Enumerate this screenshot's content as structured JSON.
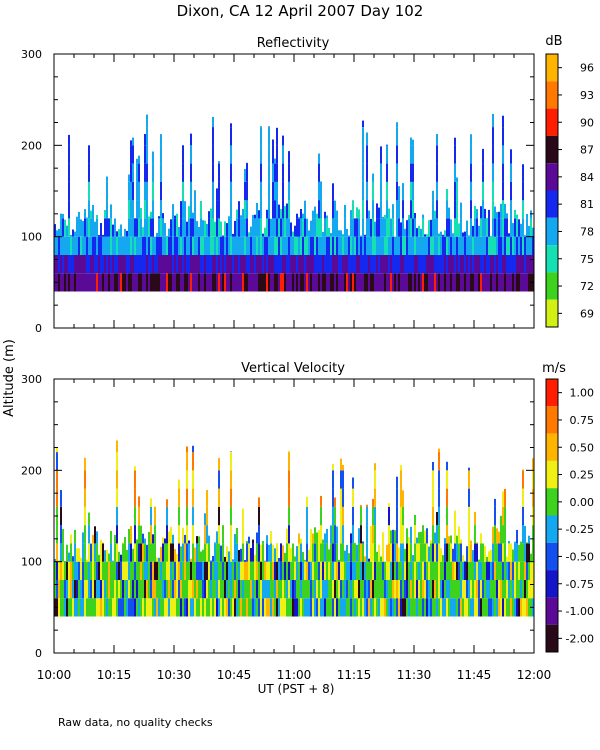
{
  "title": "Dixon, CA 12 April 2007  Day 102",
  "footer_note": "Raw data, no quality checks",
  "chart_data": [
    {
      "type": "heatmap",
      "title": "Reflectivity",
      "ylabel": "Altitude (m)",
      "xlabel": "UT  (PST + 8)",
      "x_ticks": [
        "10:00",
        "10:15",
        "10:30",
        "10:45",
        "11:00",
        "11:15",
        "11:30",
        "11:45",
        "12:00"
      ],
      "x_range": [
        "10:00",
        "12:00"
      ],
      "y_ticks": [
        0,
        100,
        200,
        300
      ],
      "ylim": [
        0,
        300
      ],
      "colorbar": {
        "unit": "dB",
        "labels": [
          "96",
          "93",
          "90",
          "87",
          "84",
          "81",
          "78",
          "75",
          "72",
          "69"
        ],
        "colors": [
          "#ffb400",
          "#ff7800",
          "#ff1e00",
          "#2a0a18",
          "#5a0a96",
          "#1428f0",
          "#14a8f0",
          "#14e0b4",
          "#3cd21e",
          "#d2f014"
        ]
      },
      "data_extent": {
        "min_altitude": 40,
        "typical_top": 140,
        "max_altitude": 300
      },
      "layers": [
        {
          "altitude_range": [
            40,
            60
          ],
          "dominant_db": "84-87"
        },
        {
          "altitude_range": [
            60,
            80
          ],
          "dominant_db": "81-84"
        },
        {
          "altitude_range": [
            80,
            140
          ],
          "dominant_db": "75-81"
        },
        {
          "altitude_range": [
            140,
            240
          ],
          "dominant_db": "78-84",
          "note": "sporadic plumes"
        }
      ]
    },
    {
      "type": "heatmap",
      "title": "Vertical Velocity",
      "ylabel": "Altitude (m)",
      "xlabel": "UT  (PST + 8)",
      "x_ticks": [
        "10:00",
        "10:15",
        "10:30",
        "10:45",
        "11:00",
        "11:15",
        "11:30",
        "11:45",
        "12:00"
      ],
      "x_range": [
        "10:00",
        "12:00"
      ],
      "y_ticks": [
        0,
        100,
        200,
        300
      ],
      "ylim": [
        0,
        300
      ],
      "colorbar": {
        "unit": "m/s",
        "labels": [
          "1.00",
          "0.75",
          "0.50",
          "0.25",
          "0.00",
          "-0.25",
          "-0.50",
          "-0.75",
          "-1.00",
          "-2.00"
        ],
        "colors": [
          "#ff1e00",
          "#ff7800",
          "#ffb400",
          "#f0f014",
          "#3cd21e",
          "#14a8f0",
          "#1450f0",
          "#1414c8",
          "#5a0a96",
          "#2a0a18"
        ]
      },
      "data_extent": {
        "min_altitude": 40,
        "typical_top": 140,
        "max_altitude": 300
      },
      "dominant_values": [
        "0.00",
        "0.25",
        "-0.25"
      ]
    }
  ]
}
